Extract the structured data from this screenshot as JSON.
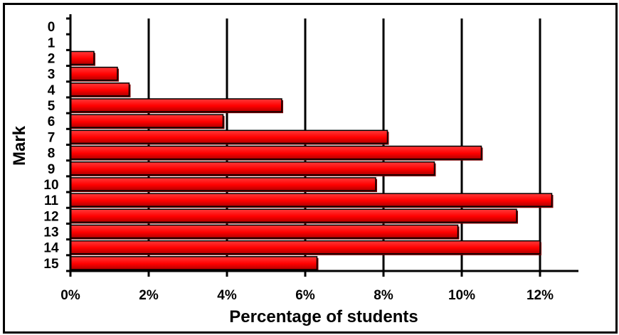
{
  "chart_data": {
    "type": "bar",
    "orientation": "horizontal",
    "categories": [
      "0",
      "1",
      "2",
      "3",
      "4",
      "5",
      "6",
      "7",
      "8",
      "9",
      "10",
      "11",
      "12",
      "13",
      "14",
      "15"
    ],
    "values": [
      0,
      0,
      0.6,
      1.2,
      1.5,
      5.4,
      3.9,
      8.1,
      10.5,
      9.3,
      7.8,
      12.3,
      11.4,
      9.9,
      12.0,
      6.3
    ],
    "xlabel": "Percentage of students",
    "ylabel": "Mark",
    "xlim": [
      0,
      13
    ],
    "x_ticks": [
      0,
      2,
      4,
      6,
      8,
      10,
      12
    ],
    "x_tick_labels": [
      "0%",
      "2%",
      "4%",
      "6%",
      "8%",
      "10%",
      "12%"
    ],
    "grid": "vertical",
    "colors": {
      "bar_fill": "#ff0000",
      "bar_shade": "#7a0000",
      "bar_edge": "#000000",
      "grid": "#000000"
    }
  }
}
